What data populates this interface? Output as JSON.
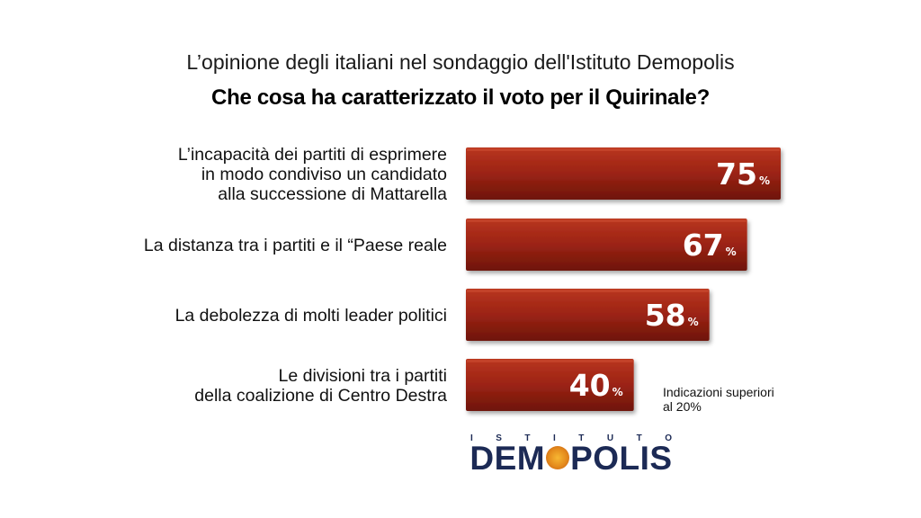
{
  "title": "L’opinione degli italiani nel sondaggio dell'Istituto Demopolis",
  "subtitle": "Che cosa ha caratterizzato il voto per il Quirinale?",
  "note": {
    "line1": "Indicazioni superiori",
    "line2": "al 20%"
  },
  "logo": {
    "top_letters": [
      "I",
      "S",
      "T",
      "I",
      "T",
      "U",
      "T",
      "O"
    ],
    "main_left": "DEM",
    "main_right": "POLIS"
  },
  "colors": {
    "bar": "#9b2314",
    "bar_light": "#b8351f",
    "bar_dark": "#6e150a",
    "brand_blue": "#1c2a55",
    "brand_orange": "#e48a1c"
  },
  "chart_data": {
    "type": "bar",
    "orientation": "horizontal",
    "value_suffix": "%",
    "xlim": [
      0,
      100
    ],
    "grid": false,
    "categories": [
      [
        "L’incapacità dei partiti di esprimere",
        "in modo condiviso un candidato",
        "alla successione di Mattarella"
      ],
      [
        "La distanza tra i partiti e il “Paese reale"
      ],
      [
        "La debolezza di molti leader politici"
      ],
      [
        "Le divisioni tra i partiti",
        "della coalizione di Centro Destra"
      ]
    ],
    "values": [
      75,
      67,
      58,
      40
    ]
  }
}
